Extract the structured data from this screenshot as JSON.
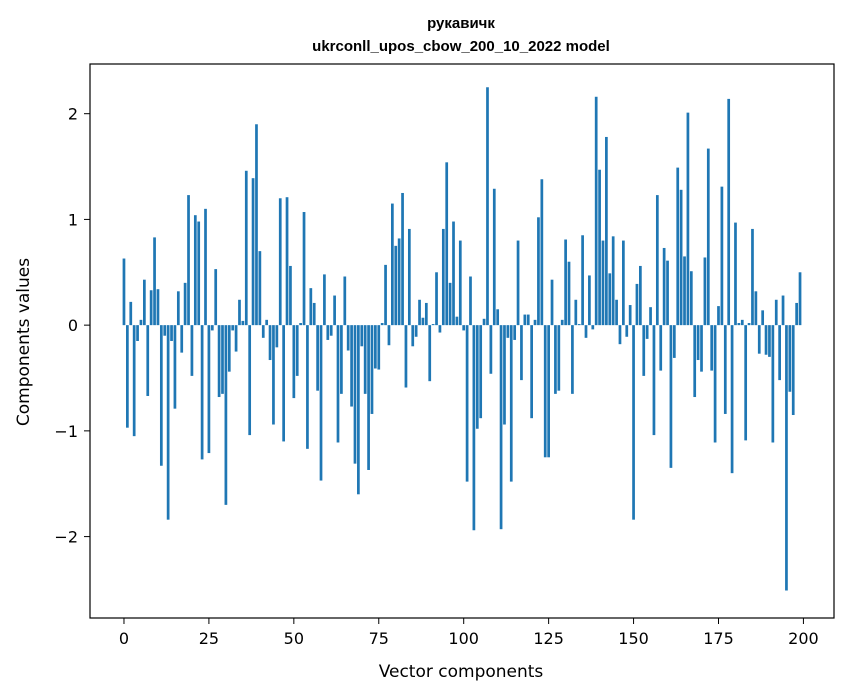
{
  "chart_data": {
    "type": "bar",
    "title_line1": "рукавичк",
    "title_line2": "ukrconll_upos_cbow_200_10_2022 model",
    "xlabel": "Vector components",
    "ylabel": "Components values",
    "xlim": [
      -10,
      209
    ],
    "ylim": [
      -2.77,
      2.47
    ],
    "xticks": [
      0,
      25,
      50,
      75,
      100,
      125,
      150,
      175,
      200
    ],
    "xtick_labels": [
      "0",
      "25",
      "50",
      "75",
      "100",
      "125",
      "150",
      "175",
      "200"
    ],
    "yticks": [
      -2,
      -1,
      0,
      1,
      2
    ],
    "ytick_labels": [
      "−2",
      "−1",
      "0",
      "1",
      "2"
    ],
    "bar_color": "#1f77b4",
    "values": [
      0.63,
      -0.97,
      0.22,
      -1.05,
      -0.15,
      0.05,
      0.43,
      -0.67,
      0.33,
      0.83,
      0.34,
      -1.33,
      -0.1,
      -1.84,
      -0.15,
      -0.79,
      0.32,
      -0.26,
      0.4,
      1.23,
      -0.48,
      1.04,
      0.98,
      -1.27,
      1.1,
      -1.21,
      -0.05,
      0.53,
      -0.68,
      -0.65,
      -1.7,
      -0.44,
      -0.05,
      -0.25,
      0.24,
      0.04,
      1.46,
      -1.04,
      1.39,
      1.9,
      0.7,
      -0.12,
      0.05,
      -0.33,
      -0.94,
      -0.21,
      1.2,
      -1.1,
      1.21,
      0.56,
      -0.69,
      -0.48,
      0.02,
      1.07,
      -1.17,
      0.35,
      0.21,
      -0.62,
      -1.47,
      0.48,
      -0.14,
      -0.1,
      0.28,
      -1.11,
      -0.65,
      0.46,
      -0.24,
      -0.77,
      -1.31,
      -1.6,
      -0.2,
      -0.65,
      -1.37,
      -0.84,
      -0.41,
      -0.42,
      0.02,
      0.57,
      -0.19,
      1.15,
      0.75,
      0.82,
      1.25,
      -0.59,
      0.91,
      -0.2,
      -0.11,
      0.24,
      0.07,
      0.21,
      -0.53,
      0.01,
      0.5,
      -0.07,
      0.91,
      1.54,
      0.4,
      0.98,
      0.08,
      0.8,
      -0.05,
      -1.48,
      0.46,
      -1.94,
      -0.98,
      -0.88,
      0.06,
      2.25,
      -0.46,
      1.29,
      0.15,
      -1.93,
      -0.94,
      -0.12,
      -1.48,
      -0.14,
      0.8,
      -0.52,
      0.1,
      0.1,
      -0.88,
      0.05,
      1.02,
      1.38,
      -1.25,
      -1.25,
      0.43,
      -0.65,
      -0.62,
      0.05,
      0.81,
      0.6,
      -0.65,
      0.24,
      0.01,
      0.85,
      -0.12,
      0.47,
      -0.04,
      2.16,
      1.47,
      0.8,
      1.78,
      0.49,
      0.84,
      0.24,
      -0.18,
      0.8,
      -0.11,
      0.19,
      -1.84,
      0.39,
      0.56,
      -0.48,
      -0.13,
      0.17,
      -1.04,
      1.23,
      -0.43,
      0.73,
      0.61,
      -1.35,
      -0.31,
      1.49,
      1.28,
      0.65,
      2.01,
      0.51,
      -0.68,
      -0.33,
      -0.44,
      0.64,
      1.67,
      -0.43,
      -1.11,
      0.18,
      1.31,
      -0.84,
      2.14,
      -1.4,
      0.97,
      0.02,
      0.05,
      -1.09,
      0.02,
      0.91,
      0.32,
      -0.27,
      0.14,
      -0.28,
      -0.3,
      -1.11,
      0.24,
      -0.52,
      0.28,
      -2.51,
      -0.63,
      -0.85,
      0.21,
      0.5
    ]
  }
}
